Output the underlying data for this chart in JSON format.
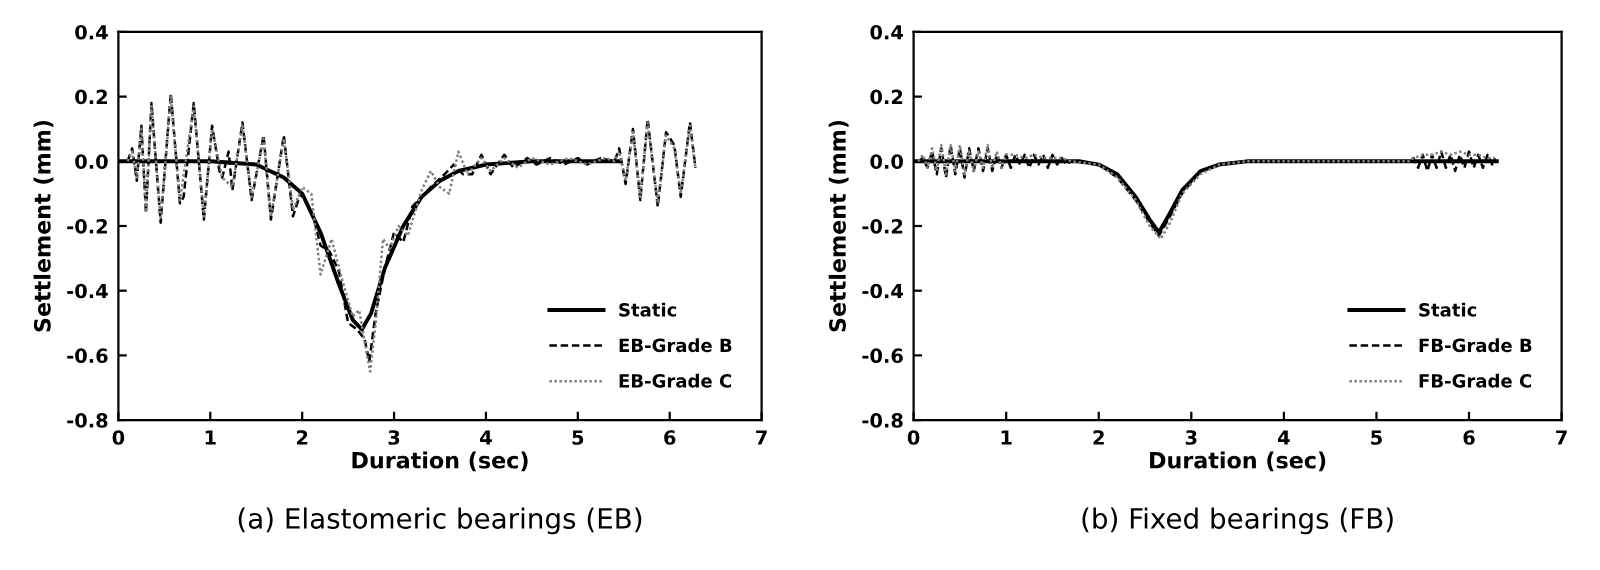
{
  "chart_data": [
    {
      "type": "line",
      "xlabel": "Duration (sec)",
      "ylabel": "Settlement (mm)",
      "annotations": [
        "(a) Elastomeric bearings (EB)"
      ],
      "xlim": [
        0,
        7
      ],
      "xticks": [
        0,
        1,
        2,
        3,
        4,
        5,
        6,
        7
      ],
      "ylim": [
        -0.8,
        0.4
      ],
      "yticks": [
        {
          "value": -0.8,
          "label": "-0.8"
        },
        {
          "value": -0.6,
          "label": "-0.6"
        },
        {
          "value": -0.4,
          "label": "-0.4"
        },
        {
          "value": -0.2,
          "label": "-0.2"
        },
        {
          "value": 0,
          "label": "0.0"
        },
        {
          "value": 0.2,
          "label": "0.2"
        },
        {
          "value": 0.4,
          "label": "0.4"
        }
      ],
      "grid": false,
      "legend": "bottom right",
      "series": [
        {
          "name": "Static",
          "color": "#000000",
          "line_style": "solid",
          "x": [
            0,
            1,
            1.5,
            1.8,
            2.0,
            2.2,
            2.4,
            2.55,
            2.65,
            2.75,
            2.9,
            3.1,
            3.3,
            3.5,
            3.7,
            4.0,
            4.5,
            5.45
          ],
          "values": [
            0,
            0,
            -0.01,
            -0.05,
            -0.1,
            -0.22,
            -0.38,
            -0.49,
            -0.52,
            -0.47,
            -0.33,
            -0.2,
            -0.11,
            -0.06,
            -0.03,
            -0.01,
            0,
            0
          ]
        },
        {
          "name": "EB-Grade B",
          "color": "#000000",
          "line_style": "dashed",
          "x": [
            0.1,
            0.15,
            0.2,
            0.25,
            0.3,
            0.36,
            0.46,
            0.57,
            0.67,
            0.71,
            0.82,
            0.93,
            1.02,
            1.1,
            1.13,
            1.2,
            1.24,
            1.35,
            1.45,
            1.58,
            1.66,
            1.8,
            1.9,
            1.98,
            2.05,
            2.12,
            2.2,
            2.3,
            2.4,
            2.5,
            2.6,
            2.68,
            2.73,
            2.8,
            2.9,
            3.0,
            3.1,
            3.2,
            3.3,
            3.4,
            3.55,
            3.65,
            3.75,
            3.85,
            3.95,
            4.05,
            4.2,
            4.3,
            4.45,
            4.55,
            4.7,
            4.85,
            5.0,
            5.1,
            5.25,
            5.4,
            5.45,
            5.52,
            5.6,
            5.68,
            5.76,
            5.87,
            5.96,
            6.05,
            6.12,
            6.22,
            6.28
          ],
          "values": [
            0.0,
            0.04,
            -0.06,
            0.11,
            -0.16,
            0.18,
            -0.19,
            0.21,
            -0.13,
            -0.11,
            0.18,
            -0.18,
            0.11,
            -0.03,
            -0.05,
            0.03,
            -0.09,
            0.12,
            -0.12,
            0.08,
            -0.18,
            0.08,
            -0.17,
            -0.1,
            -0.13,
            -0.17,
            -0.26,
            -0.28,
            -0.34,
            -0.5,
            -0.52,
            -0.55,
            -0.62,
            -0.47,
            -0.33,
            -0.22,
            -0.25,
            -0.14,
            -0.11,
            -0.08,
            -0.04,
            -0.01,
            -0.04,
            -0.04,
            0.02,
            -0.04,
            0.02,
            -0.02,
            0.01,
            -0.01,
            0.01,
            -0.01,
            0.01,
            -0.01,
            0.01,
            0.0,
            0.04,
            -0.07,
            0.1,
            -0.12,
            0.13,
            -0.14,
            0.09,
            0.05,
            -0.11,
            0.12,
            -0.02
          ]
        },
        {
          "name": "EB-Grade C",
          "color": "#808080",
          "line_style": "dotted",
          "x": [
            0.1,
            0.15,
            0.2,
            0.25,
            0.3,
            0.36,
            0.46,
            0.57,
            0.67,
            0.82,
            0.93,
            1.02,
            1.13,
            1.24,
            1.35,
            1.45,
            1.58,
            1.66,
            1.8,
            1.9,
            2.0,
            2.1,
            2.2,
            2.32,
            2.42,
            2.55,
            2.62,
            2.7,
            2.74,
            2.8,
            2.88,
            2.95,
            3.05,
            3.15,
            3.3,
            3.4,
            3.5,
            3.6,
            3.7,
            3.8,
            3.95,
            4.05,
            4.2,
            4.35,
            4.5,
            4.7,
            4.9,
            5.1,
            5.3,
            5.4,
            5.45,
            5.52,
            5.6,
            5.68,
            5.76,
            5.87,
            5.96,
            6.05,
            6.12,
            6.22,
            6.28
          ],
          "values": [
            0.0,
            0.03,
            -0.05,
            0.1,
            -0.15,
            0.17,
            -0.18,
            0.2,
            -0.12,
            0.17,
            -0.17,
            0.1,
            -0.05,
            -0.08,
            0.11,
            -0.11,
            0.07,
            -0.17,
            0.07,
            -0.15,
            -0.08,
            -0.1,
            -0.35,
            -0.24,
            -0.35,
            -0.48,
            -0.46,
            -0.59,
            -0.65,
            -0.5,
            -0.24,
            -0.27,
            -0.2,
            -0.23,
            -0.09,
            -0.03,
            -0.08,
            -0.1,
            0.03,
            -0.04,
            0.01,
            -0.03,
            0.01,
            -0.02,
            0.01,
            -0.01,
            0.01,
            -0.01,
            0.01,
            0.0,
            0.03,
            -0.06,
            0.09,
            -0.11,
            0.12,
            -0.13,
            0.08,
            0.04,
            -0.1,
            0.11,
            -0.02
          ]
        }
      ]
    },
    {
      "type": "line",
      "xlabel": "Duration (sec)",
      "ylabel": "Settlement (mm)",
      "annotations": [
        "(b) Fixed bearings (FB)"
      ],
      "xlim": [
        0,
        7
      ],
      "xticks": [
        0,
        1,
        2,
        3,
        4,
        5,
        6,
        7
      ],
      "ylim": [
        -0.8,
        0.4
      ],
      "yticks": [
        {
          "value": -0.8,
          "label": "-0.8"
        },
        {
          "value": -0.6,
          "label": "-0.6"
        },
        {
          "value": -0.4,
          "label": "-0.4"
        },
        {
          "value": -0.2,
          "label": "-0.2"
        },
        {
          "value": 0,
          "label": "0.0"
        },
        {
          "value": 0.2,
          "label": "0.2"
        },
        {
          "value": 0.4,
          "label": "0.4"
        }
      ],
      "grid": false,
      "legend": "bottom right",
      "series": [
        {
          "name": "Static",
          "color": "#000000",
          "line_style": "solid",
          "x": [
            0,
            1.8,
            2.0,
            2.2,
            2.4,
            2.55,
            2.65,
            2.75,
            2.9,
            3.1,
            3.3,
            3.6,
            6.3
          ],
          "values": [
            0,
            0,
            -0.01,
            -0.04,
            -0.11,
            -0.18,
            -0.22,
            -0.17,
            -0.09,
            -0.03,
            -0.01,
            0,
            0
          ]
        },
        {
          "name": "FB-Grade B",
          "color": "#000000",
          "line_style": "dashed",
          "x": [
            0.05,
            0.1,
            0.15,
            0.2,
            0.25,
            0.3,
            0.35,
            0.4,
            0.45,
            0.5,
            0.55,
            0.6,
            0.65,
            0.7,
            0.75,
            0.8,
            0.85,
            0.9,
            0.95,
            1.0,
            1.05,
            1.1,
            1.15,
            1.2,
            1.25,
            1.3,
            1.35,
            1.4,
            1.45,
            1.5,
            1.55,
            1.6,
            1.65,
            1.7,
            2.0,
            2.2,
            2.4,
            2.55,
            2.65,
            2.75,
            2.9,
            3.1,
            3.3,
            3.6,
            5.35,
            5.4,
            5.45,
            5.5,
            5.55,
            5.6,
            5.65,
            5.7,
            5.75,
            5.8,
            5.85,
            5.9,
            5.95,
            6.0,
            6.05,
            6.1,
            6.15,
            6.2,
            6.25,
            6.28
          ],
          "values": [
            0,
            0.01,
            -0.02,
            0.03,
            -0.04,
            0.04,
            -0.05,
            0.05,
            -0.04,
            0.04,
            -0.05,
            0.04,
            -0.03,
            0.04,
            -0.03,
            0.04,
            -0.03,
            0.02,
            -0.02,
            0.02,
            -0.02,
            0.02,
            -0.01,
            0.02,
            -0.02,
            0.02,
            -0.01,
            0.02,
            -0.02,
            0.02,
            -0.01,
            0.01,
            -0.01,
            0.0,
            -0.01,
            -0.05,
            -0.12,
            -0.19,
            -0.23,
            -0.18,
            -0.1,
            -0.03,
            -0.01,
            0,
            0,
            0.01,
            -0.02,
            0.02,
            -0.03,
            0.02,
            -0.02,
            0.03,
            -0.02,
            0.02,
            -0.03,
            0.02,
            -0.02,
            0.03,
            -0.02,
            0.02,
            -0.02,
            0.02,
            -0.01,
            0.01
          ]
        },
        {
          "name": "FB-Grade C",
          "color": "#808080",
          "line_style": "dotted",
          "x": [
            0.05,
            0.1,
            0.15,
            0.2,
            0.25,
            0.3,
            0.35,
            0.4,
            0.45,
            0.5,
            0.55,
            0.6,
            0.65,
            0.7,
            0.75,
            0.8,
            0.85,
            0.9,
            0.95,
            1.0,
            1.1,
            1.2,
            1.3,
            1.4,
            1.5,
            1.6,
            1.7,
            2.0,
            2.2,
            2.4,
            2.55,
            2.67,
            2.77,
            2.9,
            3.1,
            3.3,
            3.6,
            5.35,
            5.4,
            5.5,
            5.6,
            5.7,
            5.8,
            5.9,
            6.0,
            6.1,
            6.2,
            6.28
          ],
          "values": [
            0,
            0.02,
            -0.02,
            0.04,
            -0.03,
            0.05,
            -0.04,
            0.05,
            -0.03,
            0.05,
            -0.04,
            0.03,
            -0.03,
            0.03,
            -0.02,
            0.05,
            -0.02,
            0.03,
            -0.02,
            0.02,
            0.02,
            0.01,
            0.02,
            0.01,
            0.01,
            0.01,
            0.0,
            -0.01,
            -0.05,
            -0.12,
            -0.2,
            -0.24,
            -0.19,
            -0.1,
            -0.04,
            -0.01,
            0,
            0,
            0.01,
            0.02,
            0.02,
            0.03,
            0.02,
            0.03,
            0.02,
            0.02,
            0.01,
            0.01
          ]
        }
      ]
    }
  ]
}
